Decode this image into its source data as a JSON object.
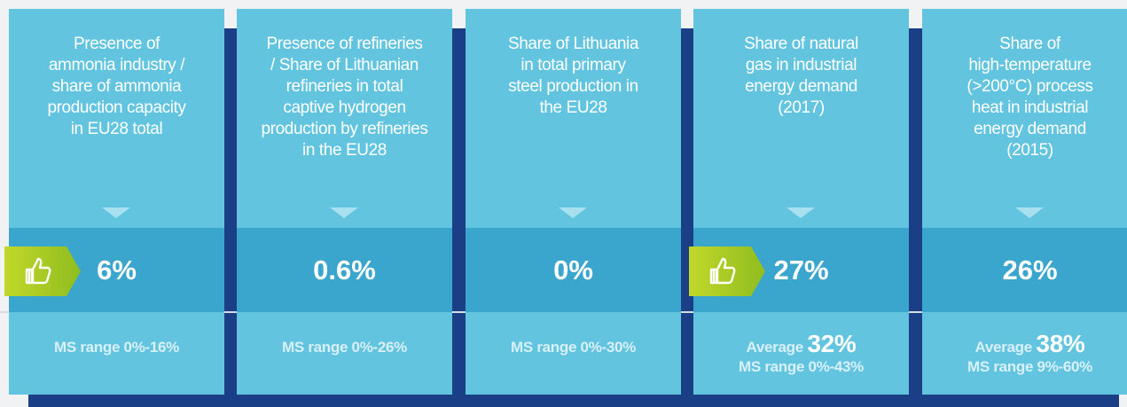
{
  "cards": [
    {
      "title_lines": [
        "Presence of",
        "ammonia industry /",
        "share of ammonia",
        "production capacity",
        "in EU28 total"
      ],
      "value": "6%",
      "range": "MS range 0%-16%",
      "thumb": true
    },
    {
      "title_lines": [
        "Presence of refineries",
        "/ Share of Lithuanian",
        "refineries in total",
        "captive hydrogen",
        "production by refineries",
        "in the EU28"
      ],
      "value": "0.6%",
      "range": "MS range 0%-26%",
      "thumb": false
    },
    {
      "title_lines": [
        "Share of Lithuania",
        "in total primary",
        "steel production in",
        "the EU28"
      ],
      "value": "0%",
      "range": "MS range 0%-30%",
      "thumb": false
    },
    {
      "title_lines": [
        "Share of natural",
        "gas in industrial",
        "energy demand",
        "(2017)"
      ],
      "value": "27%",
      "average_label": "Average",
      "average": "32%",
      "range": "MS range 0%-43%",
      "thumb": true
    },
    {
      "title_lines": [
        "Share of",
        "high-temperature",
        "(>200°C) process",
        "heat in industrial",
        "energy demand",
        "(2015)"
      ],
      "value": "26%",
      "average_label": "Average",
      "average": "38%",
      "range": "MS range 9%-60%",
      "thumb": false
    }
  ]
}
